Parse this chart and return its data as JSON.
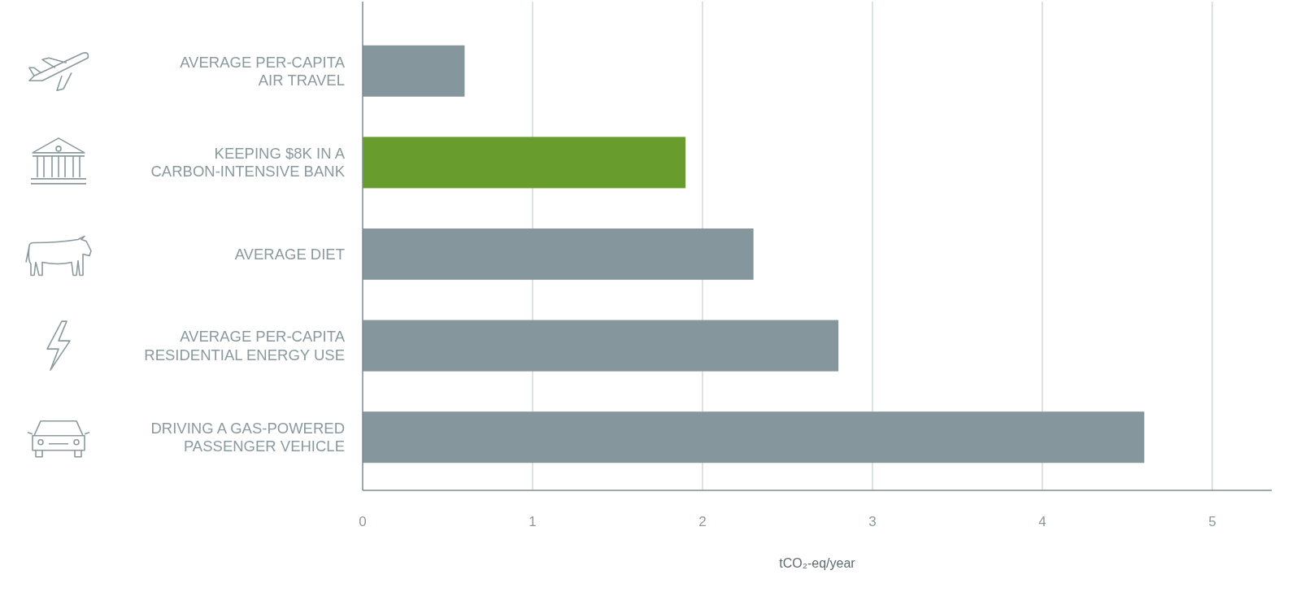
{
  "chart_data": {
    "type": "bar",
    "orientation": "horizontal",
    "xlabel": "tCO₂-eq/year",
    "categories": [
      "AVERAGE PER-CAPITA\nAIR TRAVEL",
      "KEEPING $8K IN A\nCARBON-INTENSIVE BANK",
      "AVERAGE DIET",
      "AVERAGE PER-CAPITA\nRESIDENTIAL ENERGY USE",
      "DRIVING A GAS-POWERED\nPASSENGER VEHICLE"
    ],
    "values": [
      0.6,
      1.9,
      2.3,
      2.8,
      4.6
    ],
    "colors": [
      "#85979c",
      "#689c2c",
      "#85979c",
      "#85979c",
      "#85979c"
    ],
    "xlim": [
      0,
      5.35
    ],
    "xticks": [
      0,
      1,
      2,
      3,
      4,
      5
    ],
    "grid": "x"
  }
}
